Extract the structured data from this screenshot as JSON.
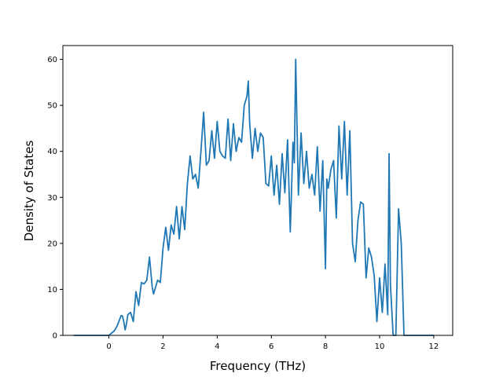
{
  "chart_data": {
    "type": "line",
    "title": "",
    "xlabel": "Frequency (THz)",
    "ylabel": "Density of States",
    "xlim": [
      -1.7,
      12.7
    ],
    "ylim": [
      0,
      63
    ],
    "xticks": [
      0,
      2,
      4,
      6,
      8,
      10,
      12
    ],
    "yticks": [
      0,
      10,
      20,
      30,
      40,
      50,
      60
    ],
    "grid": false,
    "legend": "none",
    "line_color": "#1f77b4",
    "series": [
      {
        "x": [
          -1.3,
          0.0,
          0.1,
          0.2,
          0.3,
          0.4,
          0.45,
          0.5,
          0.55,
          0.6,
          0.65,
          0.7,
          0.8,
          0.9,
          1.0,
          1.1,
          1.2,
          1.3,
          1.4,
          1.5,
          1.6,
          1.65,
          1.7,
          1.8,
          1.9,
          2.0,
          2.1,
          2.2,
          2.3,
          2.4,
          2.5,
          2.6,
          2.7,
          2.8,
          2.9,
          3.0,
          3.1,
          3.2,
          3.3,
          3.4,
          3.5,
          3.6,
          3.7,
          3.8,
          3.9,
          4.0,
          4.1,
          4.2,
          4.3,
          4.4,
          4.5,
          4.6,
          4.7,
          4.8,
          4.9,
          5.0,
          5.1,
          5.15,
          5.2,
          5.3,
          5.4,
          5.5,
          5.6,
          5.7,
          5.8,
          5.9,
          6.0,
          6.1,
          6.2,
          6.3,
          6.4,
          6.5,
          6.6,
          6.7,
          6.8,
          6.85,
          6.9,
          7.0,
          7.1,
          7.2,
          7.3,
          7.4,
          7.5,
          7.6,
          7.7,
          7.8,
          7.9,
          8.0,
          8.05,
          8.1,
          8.2,
          8.3,
          8.4,
          8.5,
          8.6,
          8.7,
          8.8,
          8.9,
          9.0,
          9.1,
          9.2,
          9.3,
          9.4,
          9.5,
          9.6,
          9.7,
          9.8,
          9.9,
          10.0,
          10.1,
          10.2,
          10.3,
          10.35,
          10.4,
          10.5,
          10.6,
          10.7,
          10.8,
          10.9,
          11.0,
          12.0
        ],
        "y": [
          0,
          0,
          0.5,
          1,
          2,
          3.5,
          4.3,
          4.2,
          3,
          1.2,
          2.5,
          4.5,
          5,
          3,
          9.5,
          6.5,
          11.5,
          11.2,
          12,
          17,
          10.5,
          9,
          10,
          12,
          11.5,
          19,
          23.5,
          18.5,
          24,
          22,
          28,
          21,
          28,
          23,
          33,
          39,
          34,
          35,
          32,
          40,
          48.5,
          37,
          38,
          44.5,
          38.5,
          46.5,
          40,
          39,
          38.5,
          47,
          38,
          46,
          40,
          43,
          42,
          50,
          52,
          55.3,
          46,
          38.5,
          45,
          40,
          44,
          43,
          33,
          32.5,
          39,
          30.5,
          37,
          28.5,
          39.5,
          31,
          42.5,
          22.5,
          42,
          37.5,
          60,
          30.5,
          44,
          33,
          40,
          32,
          35,
          30.5,
          41,
          27,
          38,
          14.5,
          34,
          32,
          36,
          38,
          25.5,
          45.5,
          34,
          46.5,
          30.5,
          44.5,
          20,
          16,
          25,
          29,
          28.5,
          12.5,
          19,
          17,
          13,
          3,
          12.5,
          5,
          15.5,
          4.5,
          39.5,
          11,
          0,
          0,
          27.5,
          20,
          0,
          0,
          0
        ]
      }
    ]
  }
}
